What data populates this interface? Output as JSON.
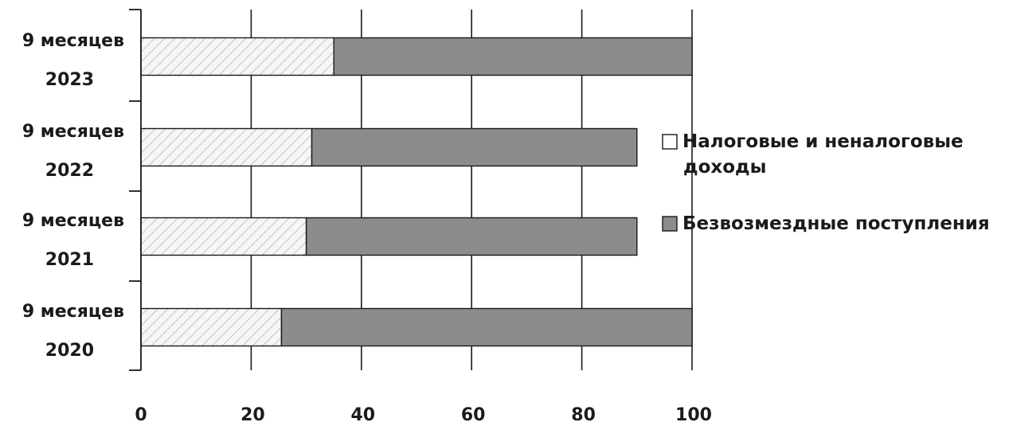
{
  "chart_data": {
    "type": "bar",
    "orientation": "horizontal",
    "stacked": true,
    "categories": [
      [
        "9 месяцев",
        "2020"
      ],
      [
        "9 месяцев",
        "2021"
      ],
      [
        "9 месяцев",
        "2022"
      ],
      [
        "9 месяцев",
        "2023"
      ]
    ],
    "series": [
      {
        "name": "Налоговые и неналоговые доходы",
        "legend_lines": [
          "Налоговые и неналоговые",
          "доходы"
        ],
        "values": [
          25.5,
          30,
          31,
          35
        ],
        "fill": "hatched-light",
        "color": "#d9d9d9"
      },
      {
        "name": "Безвозмездные поступления",
        "legend_lines": [
          "Безвозмездные поступления"
        ],
        "values": [
          74.5,
          60,
          59,
          65
        ],
        "fill": "solid-gray",
        "color": "#8c8c8c"
      }
    ],
    "xlim": [
      0,
      100
    ],
    "xticks": [
      0,
      20,
      40,
      60,
      80,
      100
    ],
    "grid": "vertical",
    "legend_position": "right",
    "title": "",
    "xlabel": "",
    "ylabel": ""
  }
}
